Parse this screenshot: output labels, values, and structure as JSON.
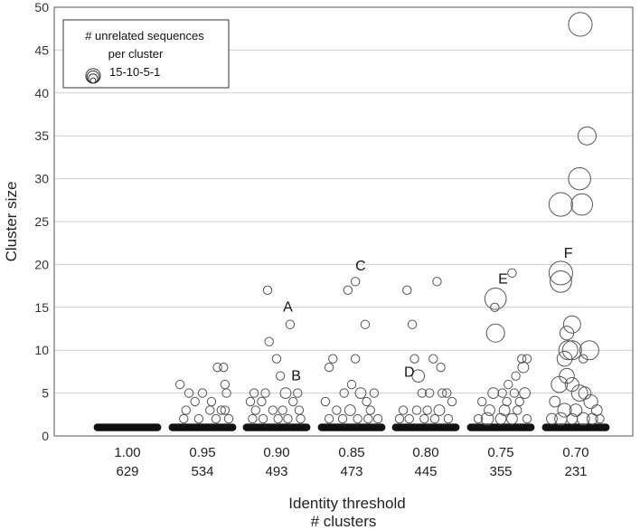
{
  "chart_data": {
    "type": "scatter",
    "title": "",
    "xlabel": "Identity threshold",
    "xlabel2": "# clusters",
    "ylabel": "Cluster size",
    "ylim": [
      0,
      50
    ],
    "yticks": [
      "0",
      "5",
      "10",
      "15",
      "20",
      "25",
      "30",
      "35",
      "40",
      "45",
      "50"
    ],
    "grid": "horizontal",
    "legend": {
      "placement": "top-left",
      "title_line1": "# unrelated sequences",
      "title_line2": "per cluster",
      "scale_label": "15-10-5-1",
      "scale_values": [
        15,
        10,
        5,
        1
      ]
    },
    "categories": [
      "1.00",
      "0.95",
      "0.90",
      "0.85",
      "0.80",
      "0.75",
      "0.70"
    ],
    "cluster_counts": [
      "629",
      "534",
      "493",
      "473",
      "445",
      "355",
      "231"
    ],
    "baseline_size": 1,
    "groups": [
      {
        "threshold": "1.00",
        "points": []
      },
      {
        "threshold": "0.95",
        "points": [
          {
            "xo": -0.3,
            "y": 6,
            "n": 1
          },
          {
            "xo": -0.18,
            "y": 5,
            "n": 1
          },
          {
            "xo": -0.1,
            "y": 4,
            "n": 1
          },
          {
            "xo": 0.0,
            "y": 5,
            "n": 1
          },
          {
            "xo": 0.12,
            "y": 4,
            "n": 1
          },
          {
            "xo": 0.2,
            "y": 8,
            "n": 1
          },
          {
            "xo": 0.28,
            "y": 8,
            "n": 1
          },
          {
            "xo": 0.3,
            "y": 6,
            "n": 1
          },
          {
            "xo": 0.32,
            "y": 5,
            "n": 1
          },
          {
            "xo": 0.3,
            "y": 3,
            "n": 1
          },
          {
            "xo": -0.22,
            "y": 3,
            "n": 1
          },
          {
            "xo": 0.1,
            "y": 3,
            "n": 1
          },
          {
            "xo": -0.25,
            "y": 2,
            "n": 1
          },
          {
            "xo": -0.05,
            "y": 2,
            "n": 1
          },
          {
            "xo": 0.18,
            "y": 2,
            "n": 1
          },
          {
            "xo": 0.35,
            "y": 2,
            "n": 1
          },
          {
            "xo": 0.25,
            "y": 3,
            "n": 1
          }
        ]
      },
      {
        "threshold": "0.90",
        "points": [
          {
            "xo": -0.35,
            "y": 4,
            "n": 1
          },
          {
            "xo": -0.3,
            "y": 5,
            "n": 1
          },
          {
            "xo": -0.12,
            "y": 17,
            "n": 1
          },
          {
            "xo": -0.1,
            "y": 11,
            "n": 1
          },
          {
            "xo": 0.0,
            "y": 9,
            "n": 1
          },
          {
            "xo": 0.05,
            "y": 7,
            "n": 1
          },
          {
            "xo": 0.12,
            "y": 5,
            "n": 2
          },
          {
            "xo": 0.18,
            "y": 13,
            "n": 1
          },
          {
            "xo": -0.2,
            "y": 4,
            "n": 1
          },
          {
            "xo": -0.15,
            "y": 5,
            "n": 1
          },
          {
            "xo": 0.22,
            "y": 4,
            "n": 1
          },
          {
            "xo": 0.28,
            "y": 5,
            "n": 1
          },
          {
            "xo": 0.3,
            "y": 3,
            "n": 1
          },
          {
            "xo": -0.28,
            "y": 3,
            "n": 1
          },
          {
            "xo": -0.05,
            "y": 3,
            "n": 1
          },
          {
            "xo": 0.08,
            "y": 3,
            "n": 1
          },
          {
            "xo": -0.32,
            "y": 2,
            "n": 1
          },
          {
            "xo": -0.18,
            "y": 2,
            "n": 1
          },
          {
            "xo": 0.02,
            "y": 2,
            "n": 1
          },
          {
            "xo": 0.15,
            "y": 2,
            "n": 1
          },
          {
            "xo": 0.32,
            "y": 2,
            "n": 1
          }
        ]
      },
      {
        "threshold": "0.85",
        "points": [
          {
            "xo": -0.3,
            "y": 8,
            "n": 1
          },
          {
            "xo": -0.25,
            "y": 9,
            "n": 1
          },
          {
            "xo": -0.05,
            "y": 17,
            "n": 1
          },
          {
            "xo": 0.05,
            "y": 18,
            "n": 1
          },
          {
            "xo": 0.05,
            "y": 9,
            "n": 1
          },
          {
            "xo": 0.18,
            "y": 13,
            "n": 1
          },
          {
            "xo": -0.1,
            "y": 5,
            "n": 1
          },
          {
            "xo": 0.0,
            "y": 6,
            "n": 1
          },
          {
            "xo": 0.12,
            "y": 5,
            "n": 2
          },
          {
            "xo": 0.2,
            "y": 4,
            "n": 1
          },
          {
            "xo": 0.3,
            "y": 5,
            "n": 1
          },
          {
            "xo": -0.35,
            "y": 4,
            "n": 1
          },
          {
            "xo": -0.2,
            "y": 3,
            "n": 1
          },
          {
            "xo": -0.02,
            "y": 3,
            "n": 2
          },
          {
            "xo": 0.25,
            "y": 3,
            "n": 1
          },
          {
            "xo": -0.3,
            "y": 2,
            "n": 1
          },
          {
            "xo": -0.12,
            "y": 2,
            "n": 1
          },
          {
            "xo": 0.08,
            "y": 2,
            "n": 1
          },
          {
            "xo": 0.22,
            "y": 2,
            "n": 1
          },
          {
            "xo": 0.35,
            "y": 2,
            "n": 1
          }
        ]
      },
      {
        "threshold": "0.80",
        "points": [
          {
            "xo": -0.25,
            "y": 17,
            "n": 1
          },
          {
            "xo": -0.18,
            "y": 13,
            "n": 1
          },
          {
            "xo": 0.15,
            "y": 18,
            "n": 1
          },
          {
            "xo": -0.15,
            "y": 9,
            "n": 1
          },
          {
            "xo": -0.1,
            "y": 7,
            "n": 3
          },
          {
            "xo": 0.1,
            "y": 9,
            "n": 1
          },
          {
            "xo": 0.2,
            "y": 8,
            "n": 1
          },
          {
            "xo": -0.05,
            "y": 5,
            "n": 1
          },
          {
            "xo": 0.05,
            "y": 5,
            "n": 1
          },
          {
            "xo": 0.22,
            "y": 5,
            "n": 1
          },
          {
            "xo": 0.28,
            "y": 5,
            "n": 1
          },
          {
            "xo": 0.35,
            "y": 4,
            "n": 1
          },
          {
            "xo": -0.3,
            "y": 3,
            "n": 1
          },
          {
            "xo": -0.12,
            "y": 3,
            "n": 1
          },
          {
            "xo": 0.02,
            "y": 3,
            "n": 1
          },
          {
            "xo": 0.18,
            "y": 3,
            "n": 2
          },
          {
            "xo": -0.35,
            "y": 2,
            "n": 1
          },
          {
            "xo": -0.22,
            "y": 2,
            "n": 1
          },
          {
            "xo": -0.02,
            "y": 2,
            "n": 1
          },
          {
            "xo": 0.12,
            "y": 2,
            "n": 1
          },
          {
            "xo": 0.3,
            "y": 2,
            "n": 1
          }
        ]
      },
      {
        "threshold": "0.75",
        "points": [
          {
            "xo": -0.07,
            "y": 16,
            "n": 12
          },
          {
            "xo": -0.08,
            "y": 15,
            "n": 1
          },
          {
            "xo": -0.07,
            "y": 12,
            "n": 8
          },
          {
            "xo": 0.15,
            "y": 19,
            "n": 1
          },
          {
            "xo": 0.28,
            "y": 9,
            "n": 1
          },
          {
            "xo": 0.3,
            "y": 8,
            "n": 2
          },
          {
            "xo": 0.35,
            "y": 9,
            "n": 1
          },
          {
            "xo": 0.2,
            "y": 7,
            "n": 1
          },
          {
            "xo": 0.1,
            "y": 6,
            "n": 1
          },
          {
            "xo": -0.1,
            "y": 5,
            "n": 2
          },
          {
            "xo": 0.02,
            "y": 5,
            "n": 1
          },
          {
            "xo": 0.18,
            "y": 5,
            "n": 1
          },
          {
            "xo": 0.32,
            "y": 5,
            "n": 2
          },
          {
            "xo": -0.25,
            "y": 4,
            "n": 1
          },
          {
            "xo": 0.08,
            "y": 4,
            "n": 1
          },
          {
            "xo": 0.25,
            "y": 4,
            "n": 1
          },
          {
            "xo": -0.15,
            "y": 3,
            "n": 2
          },
          {
            "xo": 0.05,
            "y": 3,
            "n": 2
          },
          {
            "xo": 0.22,
            "y": 3,
            "n": 1
          },
          {
            "xo": -0.3,
            "y": 2,
            "n": 1
          },
          {
            "xo": -0.18,
            "y": 2,
            "n": 3
          },
          {
            "xo": 0.0,
            "y": 2,
            "n": 2
          },
          {
            "xo": 0.15,
            "y": 2,
            "n": 2
          },
          {
            "xo": 0.35,
            "y": 2,
            "n": 1
          }
        ]
      },
      {
        "threshold": "0.70",
        "points": [
          {
            "xo": 0.06,
            "y": 48,
            "n": 15
          },
          {
            "xo": 0.05,
            "y": 30,
            "n": 13
          },
          {
            "xo": 0.15,
            "y": 35,
            "n": 8
          },
          {
            "xo": -0.2,
            "y": 27,
            "n": 15
          },
          {
            "xo": 0.08,
            "y": 27,
            "n": 12
          },
          {
            "xo": -0.2,
            "y": 19,
            "n": 15
          },
          {
            "xo": -0.2,
            "y": 18,
            "n": 12
          },
          {
            "xo": -0.05,
            "y": 13,
            "n": 7
          },
          {
            "xo": -0.12,
            "y": 12,
            "n": 4
          },
          {
            "xo": -0.1,
            "y": 10,
            "n": 9
          },
          {
            "xo": -0.05,
            "y": 10,
            "n": 9
          },
          {
            "xo": 0.18,
            "y": 10,
            "n": 9
          },
          {
            "xo": -0.15,
            "y": 9,
            "n": 5
          },
          {
            "xo": -0.12,
            "y": 7,
            "n": 5
          },
          {
            "xo": 0.1,
            "y": 9,
            "n": 1
          },
          {
            "xo": -0.22,
            "y": 6,
            "n": 6
          },
          {
            "xo": -0.05,
            "y": 6,
            "n": 4
          },
          {
            "xo": 0.05,
            "y": 5,
            "n": 6
          },
          {
            "xo": 0.12,
            "y": 5,
            "n": 3
          },
          {
            "xo": 0.2,
            "y": 4,
            "n": 4
          },
          {
            "xo": -0.28,
            "y": 4,
            "n": 2
          },
          {
            "xo": -0.15,
            "y": 3,
            "n": 4
          },
          {
            "xo": 0.0,
            "y": 3,
            "n": 3
          },
          {
            "xo": 0.28,
            "y": 3,
            "n": 2
          },
          {
            "xo": -0.32,
            "y": 2,
            "n": 2
          },
          {
            "xo": -0.2,
            "y": 2,
            "n": 3
          },
          {
            "xo": -0.05,
            "y": 2,
            "n": 2
          },
          {
            "xo": 0.1,
            "y": 2,
            "n": 3
          },
          {
            "xo": 0.22,
            "y": 2,
            "n": 2
          },
          {
            "xo": 0.32,
            "y": 2,
            "n": 1
          }
        ]
      }
    ],
    "annotations": [
      {
        "label": "A",
        "category": "0.90",
        "xo": 0.15,
        "y": 14.5
      },
      {
        "label": "B",
        "category": "0.90",
        "xo": 0.26,
        "y": 6.5
      },
      {
        "label": "C",
        "category": "0.85",
        "xo": 0.12,
        "y": 19.3
      },
      {
        "label": "D",
        "category": "0.80",
        "xo": -0.22,
        "y": 6.9
      },
      {
        "label": "E",
        "category": "0.75",
        "xo": 0.03,
        "y": 17.8
      },
      {
        "label": "F",
        "category": "0.70",
        "xo": -0.1,
        "y": 20.8
      }
    ]
  }
}
